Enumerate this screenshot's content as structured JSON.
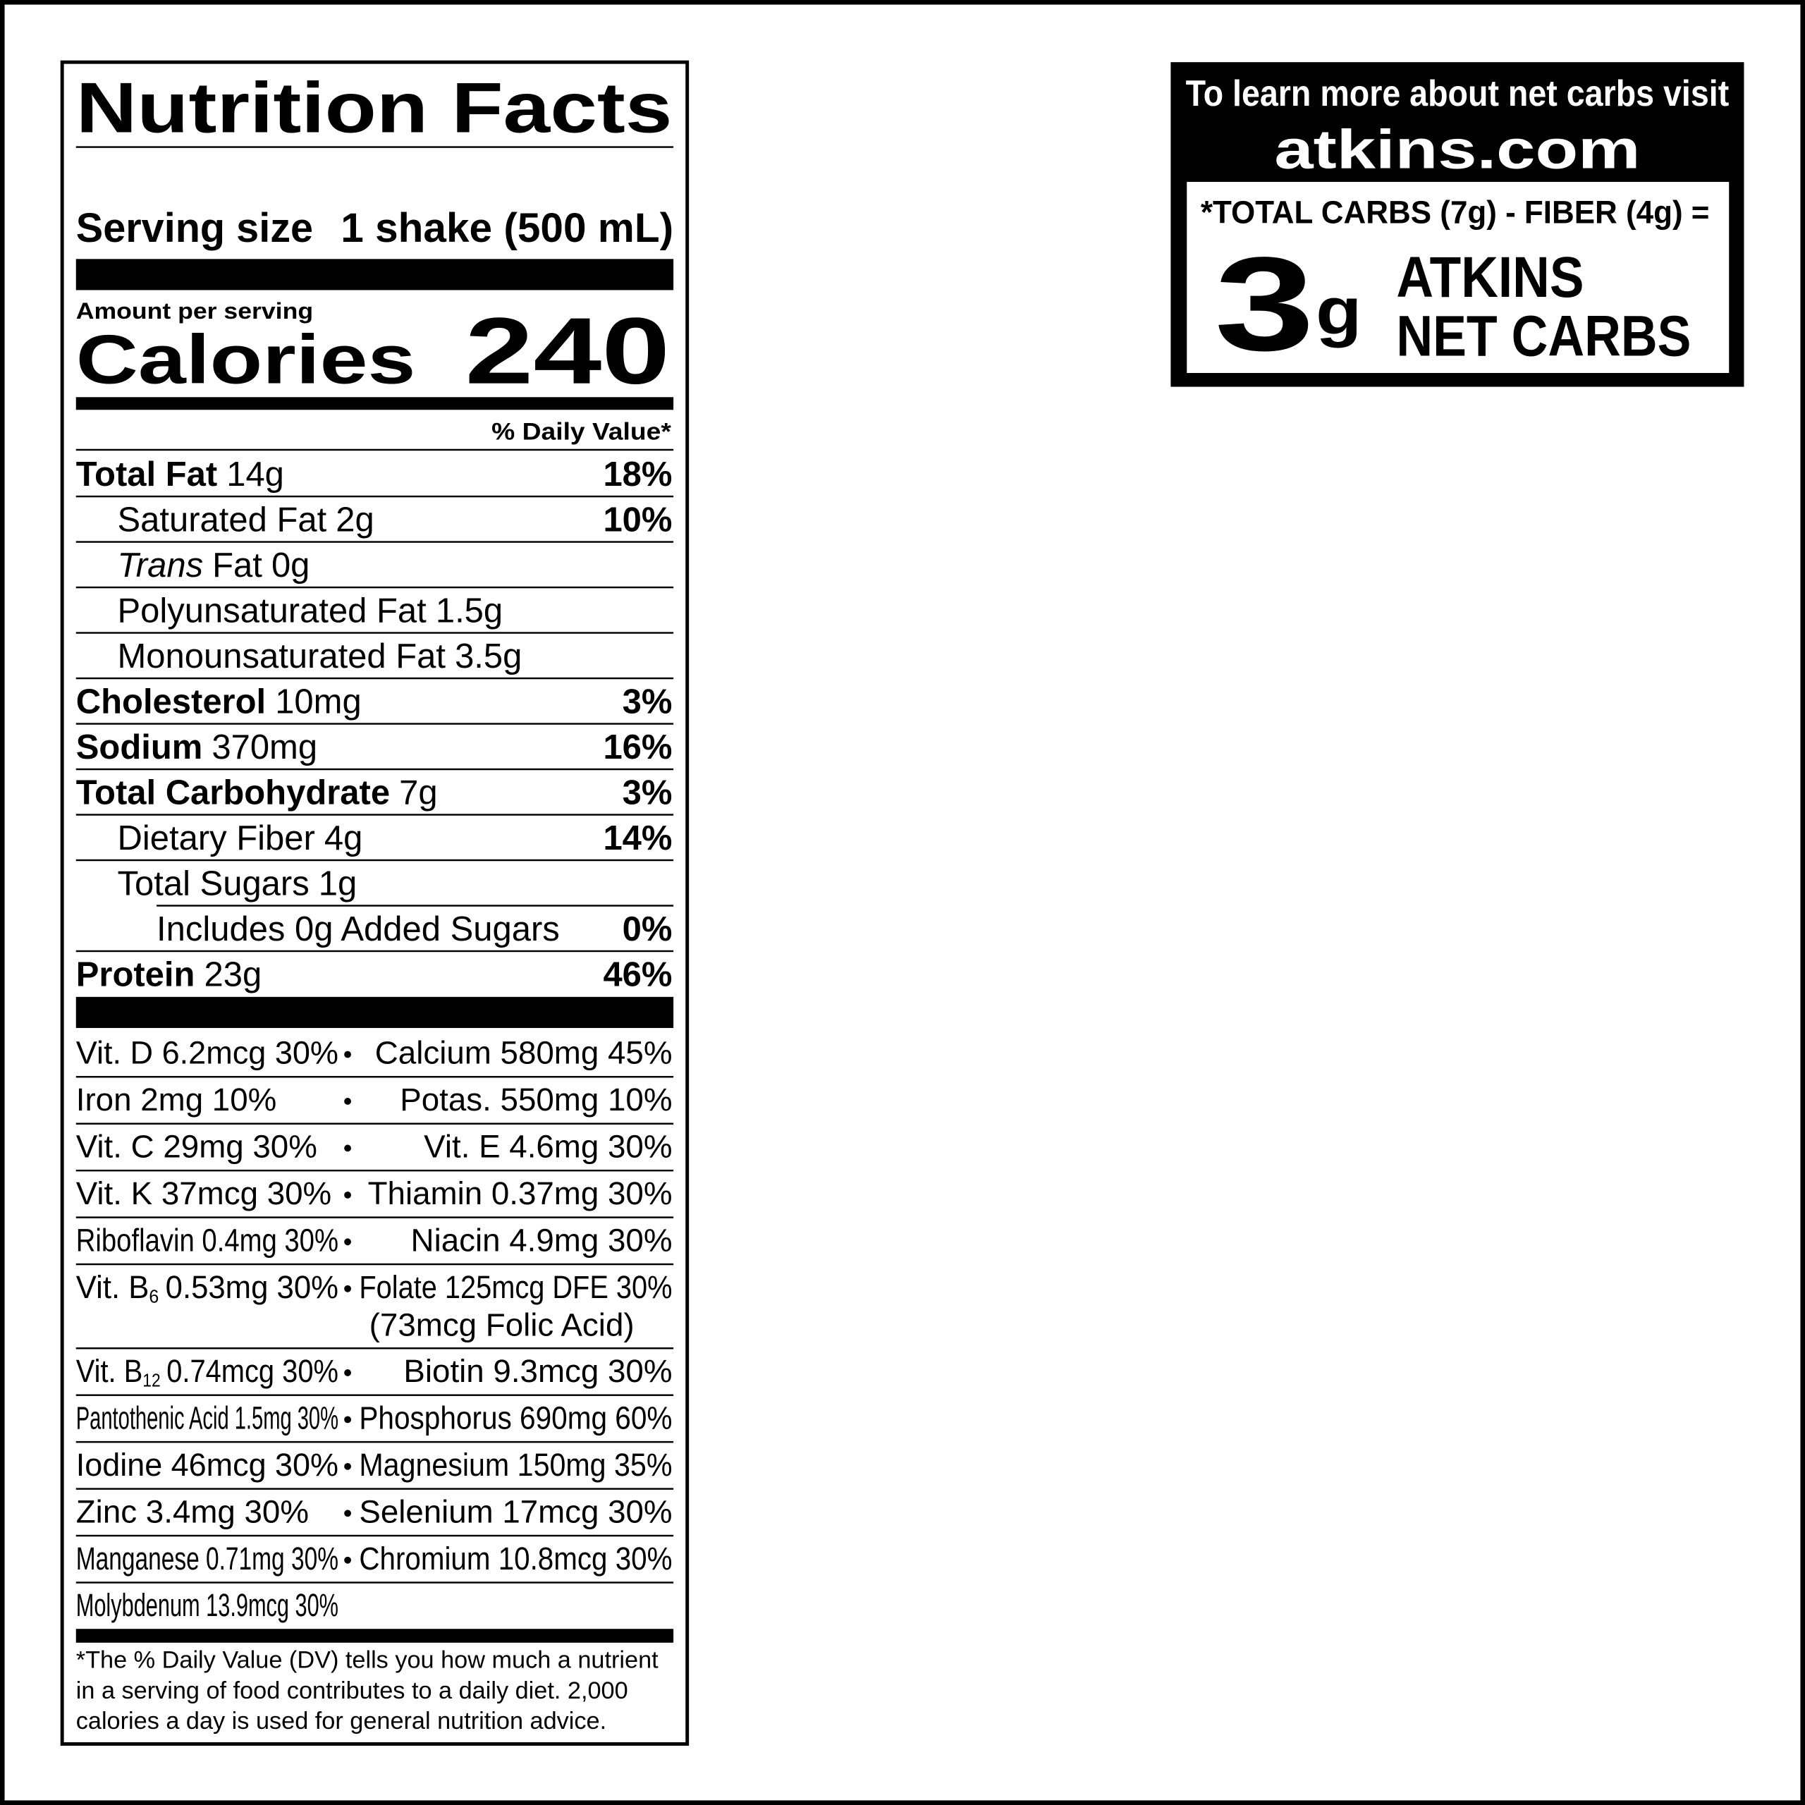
{
  "label": {
    "title": "Nutrition Facts",
    "serving_size": {
      "label": "Serving size",
      "value": "1 shake (500 mL)"
    },
    "amount_per_serving": "Amount per serving",
    "calories": {
      "label": "Calories",
      "value": "240"
    },
    "daily_value_header": "% Daily Value*",
    "nutrients": [
      {
        "name": "Total Fat",
        "amount": "14g",
        "dv": "18%"
      },
      {
        "name": "Saturated Fat",
        "amount": "2g",
        "dv": "10%"
      },
      {
        "name_italic": "Trans",
        "name": "Fat",
        "amount": "0g"
      },
      {
        "name": "Polyunsaturated Fat",
        "amount": "1.5g"
      },
      {
        "name": "Monounsaturated Fat",
        "amount": "3.5g"
      },
      {
        "name": "Cholesterol",
        "amount": "10mg",
        "dv": "3%"
      },
      {
        "name": "Sodium",
        "amount": "370mg",
        "dv": "16%"
      },
      {
        "name": "Total Carbohydrate",
        "amount": "7g",
        "dv": "3%"
      },
      {
        "name": "Dietary Fiber",
        "amount": "4g",
        "dv": "14%"
      },
      {
        "name": "Total Sugars",
        "amount": "1g"
      },
      {
        "name": "Includes 0g Added Sugars",
        "dv": "0%"
      },
      {
        "name": "Protein",
        "amount": "23g",
        "dv": "46%"
      }
    ],
    "vitamins": [
      {
        "left": "Vit. D 6.2mcg 30%",
        "right": "Calcium 580mg 45%"
      },
      {
        "left": "Iron 2mg 10%",
        "right": "Potas. 550mg 10%"
      },
      {
        "left": "Vit. C 29mg 30%",
        "right": "Vit. E 4.6mg 30%"
      },
      {
        "left": "Vit. K 37mcg 30%",
        "right": "Thiamin 0.37mg 30%"
      },
      {
        "left": "Riboflavin 0.4mg 30%",
        "right": "Niacin 4.9mg 30%"
      },
      {
        "left": {
          "text": "Vit. B",
          "subscript": "6",
          "after": "0.53mg 30%"
        },
        "right": "Folate 125mcg DFE 30%",
        "right_line2": "(73mcg Folic Acid)"
      },
      {
        "left": {
          "text": "Vit. B",
          "subscript": "12",
          "after": "0.74mcg 30%"
        },
        "right": "Biotin 9.3mcg 30%"
      },
      {
        "left": "Pantothenic Acid 1.5mg 30%",
        "right": "Phosphorus 690mg 60%"
      },
      {
        "left": "Iodine 46mcg 30%",
        "right": "Magnesium 150mg 35%"
      },
      {
        "left": "Zinc 3.4mg 30%",
        "right": "Selenium 17mcg 30%"
      },
      {
        "left": "Manganese 0.71mg 30%",
        "right": "Chromium 10.8mcg 30%"
      },
      {
        "left": "Molybdenum 13.9mcg 30%"
      }
    ],
    "footnote": [
      "*The % Daily Value (DV) tells you how much a nutrient",
      "in a serving of food contributes to a daily diet. 2,000",
      "calories a day is used for general nutrition advice."
    ]
  },
  "net_carbs": {
    "intro": "To learn more about net carbs visit",
    "website": "atkins.com",
    "formula": "*TOTAL CARBS (7g) - FIBER (4g) =",
    "amount": "3",
    "unit": "g",
    "line1": "ATKINS",
    "line2": "NET CARBS"
  }
}
